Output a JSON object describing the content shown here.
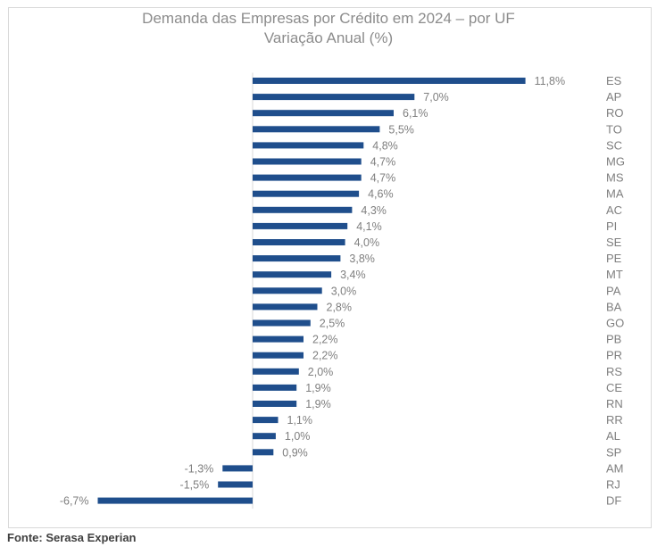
{
  "chart_data": {
    "type": "bar",
    "orientation": "horizontal",
    "title": "Demanda das Empresas por Crédito em 2024 – por UF",
    "subtitle": "Variação Anual (%)",
    "categories": [
      "ES",
      "AP",
      "RO",
      "TO",
      "SC",
      "MG",
      "MS",
      "MA",
      "AC",
      "PI",
      "SE",
      "PE",
      "MT",
      "PA",
      "BA",
      "GO",
      "PB",
      "PR",
      "RS",
      "CE",
      "RN",
      "RR",
      "AL",
      "SP",
      "AM",
      "RJ",
      "DF"
    ],
    "values": [
      11.8,
      7.0,
      6.1,
      5.5,
      4.8,
      4.7,
      4.7,
      4.6,
      4.3,
      4.1,
      4.0,
      3.8,
      3.4,
      3.0,
      2.8,
      2.5,
      2.2,
      2.2,
      2.0,
      1.9,
      1.9,
      1.1,
      1.0,
      0.9,
      -1.3,
      -1.5,
      -6.7
    ],
    "labels": [
      "11,8%",
      "7,0%",
      "6,1%",
      "5,5%",
      "4,8%",
      "4,7%",
      "4,7%",
      "4,6%",
      "4,3%",
      "4,1%",
      "4,0%",
      "3,8%",
      "3,4%",
      "3,0%",
      "2,8%",
      "2,5%",
      "2,2%",
      "2,2%",
      "2,0%",
      "1,9%",
      "1,9%",
      "1,1%",
      "1,0%",
      "0,9%",
      "-1,3%",
      "-1,5%",
      "-6,7%"
    ],
    "bar_color": "#1f4e8c",
    "label_color": "#7f7f7f",
    "grid": false,
    "legend": "none"
  },
  "source": "Fonte: Serasa Experian"
}
